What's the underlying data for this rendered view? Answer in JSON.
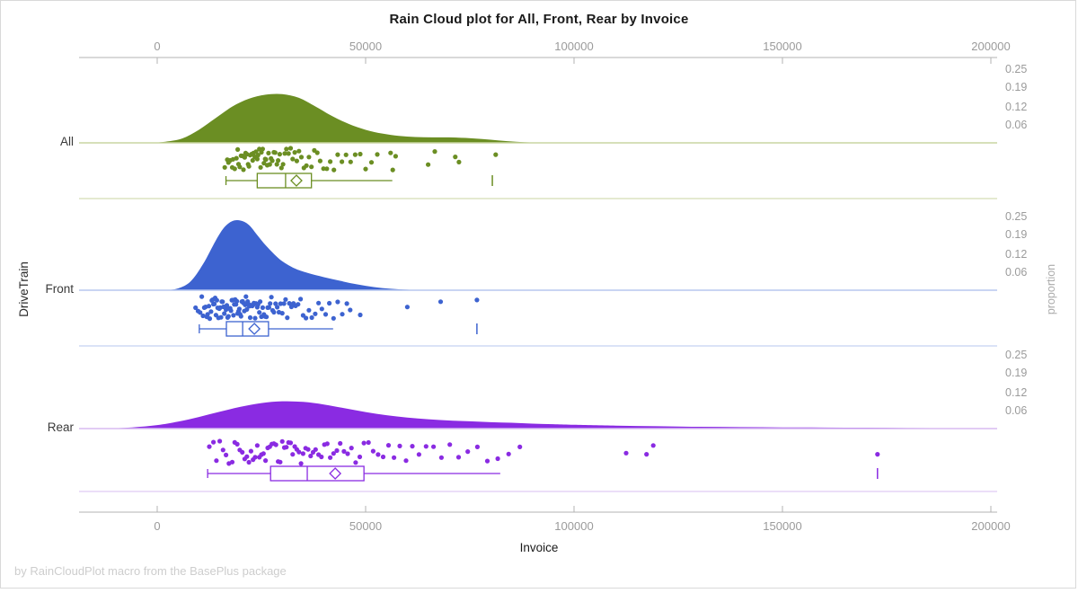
{
  "title": "Rain Cloud plot for All, Front, Rear by Invoice",
  "footer": "by RainCloudPlot macro from the BasePlus package",
  "x_axis": {
    "label": "Invoice",
    "ticks": [
      0,
      50000,
      100000,
      150000,
      200000
    ]
  },
  "y_axis": {
    "label": "DriveTrain"
  },
  "prop_axis": {
    "label": "proportion",
    "ticks": [
      0.25,
      0.19,
      0.12,
      0.06
    ]
  },
  "chart_data": {
    "type": "raincloud",
    "xlabel": "Invoice",
    "ylabel": "DriveTrain",
    "y2label": "proportion",
    "x_ticks": [
      0,
      50000,
      100000,
      150000,
      200000
    ],
    "proportion_ticks": [
      0.25,
      0.19,
      0.12,
      0.06
    ],
    "groups": [
      {
        "name": "All",
        "color": "#6B8E23",
        "light_color": "#c9d6a2",
        "density": [
          [
            -2000,
            0
          ],
          [
            2000,
            0.004
          ],
          [
            6000,
            0.015
          ],
          [
            10000,
            0.045
          ],
          [
            14000,
            0.085
          ],
          [
            18000,
            0.125
          ],
          [
            22000,
            0.152
          ],
          [
            26000,
            0.166
          ],
          [
            30000,
            0.168
          ],
          [
            34000,
            0.155
          ],
          [
            38000,
            0.125
          ],
          [
            42000,
            0.092
          ],
          [
            46000,
            0.065
          ],
          [
            50000,
            0.045
          ],
          [
            54000,
            0.032
          ],
          [
            58000,
            0.024
          ],
          [
            62000,
            0.02
          ],
          [
            66000,
            0.019
          ],
          [
            70000,
            0.019
          ],
          [
            74000,
            0.017
          ],
          [
            78000,
            0.013
          ],
          [
            82000,
            0.008
          ],
          [
            86000,
            0.004
          ],
          [
            90000,
            0.001
          ],
          [
            94000,
            0
          ]
        ],
        "box": {
          "whisker_low": 16500,
          "q1": 24000,
          "median": 30800,
          "mean": 33400,
          "q3": 37000,
          "whisker_high": 56400,
          "far_value": 80400
        },
        "points": [
          16200,
          16800,
          17100,
          17500,
          18000,
          18200,
          18600,
          19000,
          19300,
          19500,
          19800,
          20100,
          20400,
          20700,
          21000,
          21200,
          21500,
          21800,
          22000,
          22300,
          22600,
          22900,
          23100,
          23400,
          23700,
          24000,
          24200,
          24500,
          24800,
          25000,
          25300,
          25600,
          25900,
          26100,
          26400,
          26700,
          27000,
          27300,
          27600,
          28000,
          28300,
          28700,
          29000,
          29400,
          29800,
          30200,
          30600,
          31000,
          31500,
          32000,
          32500,
          33000,
          33500,
          34000,
          34600,
          35200,
          35800,
          36400,
          37000,
          37700,
          38400,
          39100,
          39900,
          40700,
          41500,
          42400,
          43300,
          44300,
          45300,
          46400,
          47500,
          48700,
          50000,
          51400,
          52800,
          56000,
          56500,
          57200,
          65000,
          66600,
          71500,
          72400,
          81200
        ]
      },
      {
        "name": "Front",
        "color": "#3D63D0",
        "light_color": "#b7c7ef",
        "density": [
          [
            2000,
            0
          ],
          [
            5000,
            0.006
          ],
          [
            8000,
            0.03
          ],
          [
            11000,
            0.09
          ],
          [
            14000,
            0.17
          ],
          [
            16000,
            0.215
          ],
          [
            18000,
            0.238
          ],
          [
            20000,
            0.24
          ],
          [
            22000,
            0.225
          ],
          [
            24000,
            0.19
          ],
          [
            26000,
            0.155
          ],
          [
            28000,
            0.125
          ],
          [
            30000,
            0.1
          ],
          [
            33000,
            0.075
          ],
          [
            36000,
            0.06
          ],
          [
            40000,
            0.045
          ],
          [
            44000,
            0.032
          ],
          [
            48000,
            0.02
          ],
          [
            52000,
            0.011
          ],
          [
            56000,
            0.005
          ],
          [
            60000,
            0.002
          ],
          [
            64000,
            0
          ]
        ],
        "box": {
          "whisker_low": 10100,
          "q1": 16600,
          "median": 20500,
          "mean": 23300,
          "q3": 26700,
          "whisker_high": 42200,
          "far_value": 76700
        },
        "points": [
          9200,
          9800,
          10300,
          10700,
          11000,
          11300,
          11600,
          11900,
          12100,
          12400,
          12600,
          12900,
          13100,
          13300,
          13500,
          13700,
          13900,
          14100,
          14300,
          14500,
          14700,
          14900,
          15100,
          15300,
          15500,
          15700,
          15900,
          16100,
          16300,
          16500,
          16700,
          16900,
          17100,
          17300,
          17500,
          17700,
          17900,
          18100,
          18300,
          18500,
          18700,
          18900,
          19100,
          19300,
          19500,
          19700,
          19900,
          20100,
          20300,
          20500,
          20700,
          20900,
          21100,
          21300,
          21500,
          21700,
          21900,
          22100,
          22300,
          22500,
          22800,
          23000,
          23200,
          23500,
          23700,
          24000,
          24200,
          24500,
          24700,
          25000,
          25300,
          25600,
          25900,
          26200,
          26500,
          26800,
          27100,
          27400,
          27700,
          28000,
          28400,
          28800,
          29200,
          29600,
          30000,
          30400,
          30800,
          31200,
          31700,
          32200,
          32700,
          33200,
          33800,
          34400,
          35000,
          35700,
          36400,
          37100,
          37900,
          38700,
          39500,
          40400,
          41300,
          42300,
          43300,
          44400,
          45500,
          46300,
          48700,
          60000,
          68000,
          76700
        ]
      },
      {
        "name": "Rear",
        "color": "#8A2BE2",
        "light_color": "#d8bcf1",
        "density": [
          [
            -12000,
            0
          ],
          [
            -6000,
            0.004
          ],
          [
            0,
            0.012
          ],
          [
            5000,
            0.024
          ],
          [
            10000,
            0.04
          ],
          [
            15000,
            0.058
          ],
          [
            20000,
            0.075
          ],
          [
            25000,
            0.088
          ],
          [
            30000,
            0.094
          ],
          [
            35000,
            0.092
          ],
          [
            40000,
            0.083
          ],
          [
            45000,
            0.07
          ],
          [
            50000,
            0.057
          ],
          [
            55000,
            0.046
          ],
          [
            60000,
            0.038
          ],
          [
            65000,
            0.032
          ],
          [
            70000,
            0.028
          ],
          [
            75000,
            0.025
          ],
          [
            80000,
            0.022
          ],
          [
            85000,
            0.02
          ],
          [
            90000,
            0.017
          ],
          [
            95000,
            0.015
          ],
          [
            100000,
            0.013
          ],
          [
            110000,
            0.01
          ],
          [
            120000,
            0.008
          ],
          [
            130000,
            0.006
          ],
          [
            140000,
            0.005
          ],
          [
            150000,
            0.004
          ],
          [
            160000,
            0.0035
          ],
          [
            170000,
            0.003
          ],
          [
            180000,
            0.002
          ],
          [
            190000,
            0.001
          ],
          [
            200000,
            0
          ]
        ],
        "box": {
          "whisker_low": 12100,
          "q1": 27200,
          "median": 36000,
          "mean": 42700,
          "q3": 49600,
          "whisker_high": 82300,
          "far_value": 172800
        },
        "points": [
          12500,
          13500,
          14200,
          15000,
          15800,
          16500,
          17200,
          18000,
          18600,
          19200,
          19800,
          20400,
          21000,
          21500,
          22000,
          22500,
          23000,
          23500,
          24000,
          24500,
          25000,
          25500,
          26000,
          26500,
          27000,
          27500,
          28000,
          28500,
          29000,
          29500,
          30000,
          30500,
          31000,
          31500,
          32000,
          32500,
          33000,
          33500,
          34000,
          34500,
          35000,
          35600,
          36200,
          36800,
          37400,
          38000,
          38700,
          39400,
          40100,
          40800,
          41500,
          42300,
          43100,
          43900,
          44800,
          45700,
          46600,
          47600,
          48600,
          49600,
          50700,
          51800,
          53000,
          54200,
          55500,
          56800,
          58200,
          59700,
          61200,
          62800,
          64500,
          66300,
          68200,
          70200,
          72300,
          74500,
          76800,
          79200,
          81700,
          84300,
          87000,
          112500,
          117400,
          119000,
          172800
        ]
      }
    ]
  }
}
